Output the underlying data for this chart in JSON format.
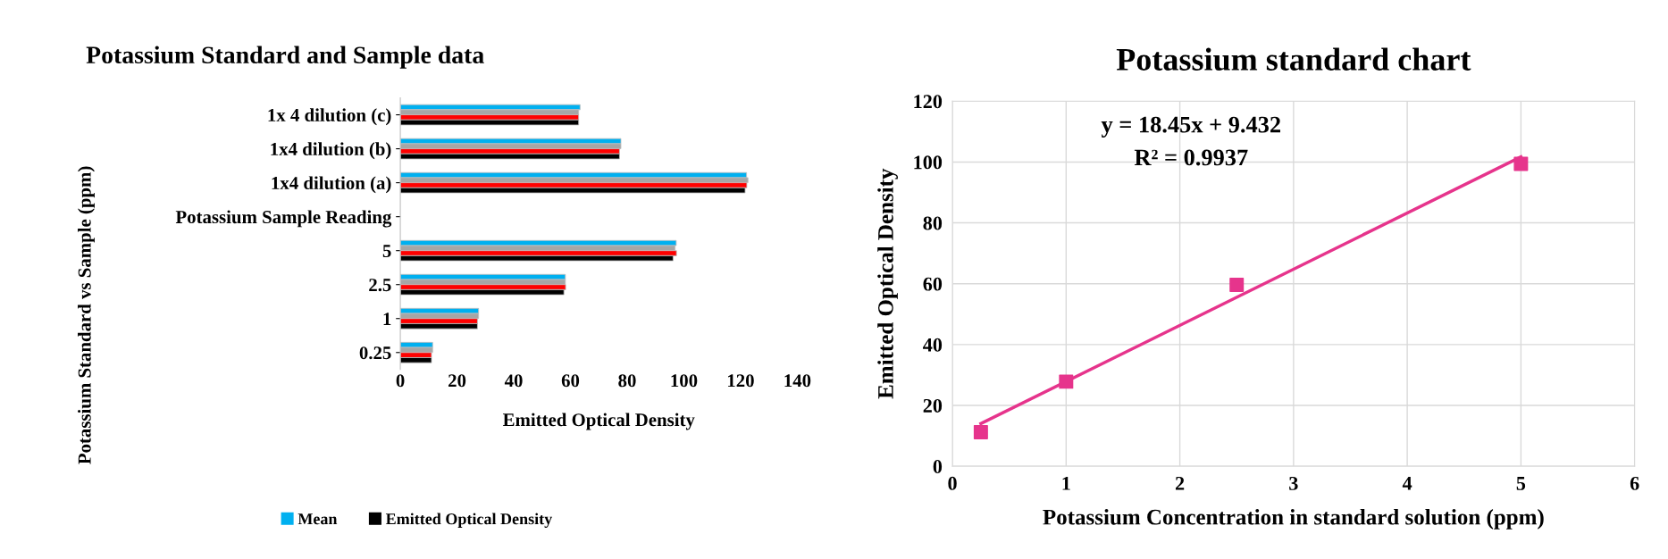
{
  "chart_data": [
    {
      "type": "bar",
      "orientation": "horizontal",
      "title": "Potassium Standard and Sample data",
      "xlabel": "Emitted Optical Density",
      "ylabel": "Potassium Standard vs Sample (ppm)",
      "categories": [
        "1x 4 dilution (c)",
        "1x4 dilution (b)",
        "1x4 dilution (a)",
        "Potassium Sample Reading",
        "5",
        "2.5",
        "1",
        "0.25"
      ],
      "series": [
        {
          "name": "Mean",
          "color": "#00b0f0",
          "values": [
            63.4,
            77.8,
            122.1,
            null,
            97.3,
            58.2,
            27.6,
            11.4
          ]
        },
        {
          "color": "#a6a6a6",
          "values": [
            62.9,
            77.8,
            122.6,
            null,
            96.9,
            58.2,
            27.6,
            11.4
          ]
        },
        {
          "color": "#ff0000",
          "values": [
            62.9,
            77.3,
            122.2,
            null,
            97.4,
            58.3,
            27.2,
            11
          ]
        },
        {
          "name": "Emitted Optical Density",
          "color": "#000000",
          "values": [
            62.9,
            77.3,
            121.6,
            null,
            96.2,
            57.7,
            27.2,
            11
          ]
        }
      ],
      "xlim": [
        0,
        140
      ],
      "xticks": [
        0,
        20,
        40,
        60,
        80,
        100,
        120,
        140
      ],
      "grid": false,
      "legend": "bottom"
    },
    {
      "type": "scatter",
      "title": "Potassium standard chart",
      "xlabel": "Potassium Concentration in standard solution (ppm)",
      "ylabel": "Emitted Optical Density",
      "series": [
        {
          "type": "scatter",
          "color": "#e6348c",
          "x": [
            0.25,
            1,
            2.5,
            5
          ],
          "values": [
            11.2,
            27.8,
            59.6,
            99.4
          ],
          "marker": "square"
        },
        {
          "type": "line",
          "color": "#e6348c",
          "x": [
            0.25,
            5
          ],
          "values": [
            14.0,
            101.7
          ],
          "marker": "none"
        }
      ],
      "annotations": [
        "y = 18.45x + 9.432",
        "R² = 0.9937"
      ],
      "xlim": [
        0,
        6
      ],
      "xticks": [
        0,
        1,
        2,
        3,
        4,
        5,
        6
      ],
      "ylim": [
        0,
        120
      ],
      "yticks": [
        0,
        20,
        40,
        60,
        80,
        100,
        120
      ],
      "grid": true
    }
  ]
}
